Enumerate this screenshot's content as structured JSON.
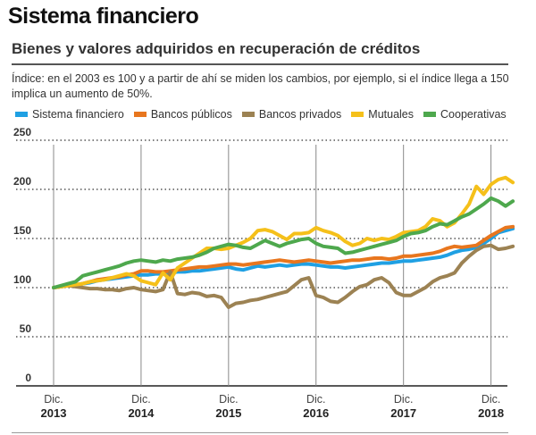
{
  "header": {
    "title": "Sistema financiero",
    "subtitle": "Bienes y valores adquiridos en recuperación de créditos",
    "note": "Índice: en el 2003 es 100 y a partir de ahí se miden los cambios, por ejemplo, si el índice llega a 150 implica un aumento de  50%."
  },
  "chart_data": {
    "type": "line",
    "title": "Bienes y valores adquiridos en recuperación de créditos",
    "xlabel": "",
    "ylabel": "",
    "ylim": [
      0,
      250
    ],
    "yticks": [
      0,
      50,
      100,
      150,
      200,
      250
    ],
    "grid": "horizontal dotted",
    "legend": "top",
    "x_start": "Dic. 2013",
    "x_interval": "1 month",
    "x_ticks": [
      {
        "index": 0,
        "line1": "Dic.",
        "line2": "2013"
      },
      {
        "index": 12,
        "line1": "Dic.",
        "line2": "2014"
      },
      {
        "index": 24,
        "line1": "Dic.",
        "line2": "2015"
      },
      {
        "index": 36,
        "line1": "Dic.",
        "line2": "2016"
      },
      {
        "index": 48,
        "line1": "Dic.",
        "line2": "2017"
      },
      {
        "index": 60,
        "line1": "Dic.",
        "line2": "2018"
      }
    ],
    "series": [
      {
        "name": "Sistema financiero",
        "color": "#1fa0e3",
        "values": [
          100,
          101,
          102,
          102,
          104,
          105,
          107,
          108,
          109,
          110,
          111,
          112,
          113,
          113,
          114,
          114,
          115,
          116,
          116,
          117,
          117,
          118,
          119,
          120,
          121,
          119,
          118,
          120,
          122,
          121,
          122,
          123,
          122,
          123,
          124,
          124,
          123,
          122,
          121,
          121,
          120,
          121,
          122,
          123,
          124,
          125,
          125,
          126,
          127,
          127,
          128,
          129,
          130,
          131,
          133,
          136,
          138,
          139,
          141,
          145,
          150,
          156,
          158,
          160
        ]
      },
      {
        "name": "Bancos públicos",
        "color": "#e8761e",
        "values": [
          100,
          101,
          102,
          103,
          104,
          106,
          108,
          109,
          110,
          111,
          113,
          114,
          117,
          117,
          116,
          116,
          117,
          118,
          119,
          120,
          121,
          121,
          122,
          123,
          124,
          124,
          123,
          124,
          125,
          126,
          127,
          128,
          127,
          126,
          127,
          128,
          127,
          126,
          125,
          126,
          127,
          128,
          128,
          129,
          130,
          130,
          129,
          130,
          132,
          132,
          133,
          134,
          135,
          137,
          140,
          142,
          141,
          142,
          143,
          148,
          153,
          157,
          161,
          162
        ]
      },
      {
        "name": "Bancos privados",
        "color": "#9c8253",
        "values": [
          100,
          101,
          102,
          101,
          100,
          99,
          99,
          98,
          98,
          97,
          99,
          100,
          98,
          97,
          96,
          98,
          116,
          94,
          93,
          95,
          94,
          91,
          92,
          90,
          80,
          84,
          85,
          87,
          88,
          90,
          92,
          94,
          96,
          102,
          108,
          110,
          92,
          90,
          86,
          85,
          90,
          96,
          101,
          103,
          108,
          110,
          105,
          95,
          92,
          92,
          96,
          100,
          106,
          110,
          112,
          115,
          125,
          132,
          138,
          142,
          143,
          139,
          140,
          142
        ]
      },
      {
        "name": "Mutuales",
        "color": "#f5c01a",
        "values": [
          100,
          101,
          102,
          103,
          104,
          106,
          107,
          108,
          110,
          112,
          114,
          112,
          107,
          105,
          103,
          115,
          108,
          120,
          125,
          130,
          135,
          140,
          140,
          139,
          140,
          143,
          146,
          150,
          158,
          159,
          157,
          153,
          149,
          155,
          155,
          156,
          161,
          158,
          156,
          153,
          147,
          143,
          145,
          150,
          148,
          150,
          149,
          152,
          156,
          157,
          158,
          162,
          170,
          168,
          162,
          166,
          175,
          185,
          203,
          195,
          205,
          210,
          212,
          207
        ]
      },
      {
        "name": "Cooperativas",
        "color": "#4ea84d",
        "values": [
          100,
          102,
          104,
          106,
          112,
          114,
          116,
          118,
          120,
          122,
          125,
          127,
          128,
          127,
          126,
          128,
          127,
          129,
          130,
          131,
          133,
          136,
          140,
          142,
          144,
          143,
          141,
          140,
          144,
          148,
          145,
          142,
          145,
          147,
          149,
          150,
          145,
          142,
          141,
          140,
          135,
          136,
          138,
          140,
          142,
          144,
          146,
          148,
          152,
          155,
          156,
          158,
          162,
          165,
          164,
          168,
          172,
          175,
          180,
          185,
          191,
          188,
          183,
          188
        ]
      }
    ]
  }
}
